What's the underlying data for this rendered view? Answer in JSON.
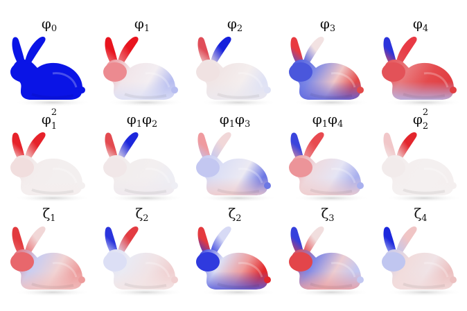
{
  "figure": {
    "rows": [
      [
        {
          "label_base": "φ",
          "label_sub": "0",
          "colormap": {
            "base": "#0a14e6",
            "ear_tip": "#0a14e6",
            "ear2": "#0a14e6",
            "head": "#0a14e6",
            "front": "#0a14e6",
            "back": "#0a14e6",
            "bottom": "#0a14e6"
          }
        },
        {
          "label_base": "φ",
          "label_sub": "1",
          "colormap": {
            "base": "#f3eef2",
            "ear_tip": "#e8141e",
            "ear2": "#e8141e",
            "head": "#ec8a90",
            "front": "#f1e6ea",
            "back": "#b7bdf0",
            "bottom": "#dcdff5"
          }
        },
        {
          "label_base": "φ",
          "label_sub": "2",
          "colormap": {
            "base": "#f4eeee",
            "ear_tip": "#e04d58",
            "ear2": "#1520dc",
            "head": "#f0e2e2",
            "front": "#f1e6e6",
            "back": "#dfe2f5",
            "bottom": "#ebe8ee"
          }
        },
        {
          "label_base": "φ",
          "label_sub": "3",
          "colormap": {
            "base": "#f0c7c7",
            "ear_tip": "#e83a40",
            "ear2": "#f2e2e2",
            "head": "#4a57dc",
            "front": "#7f8ae6",
            "back": "#e34a4a",
            "bottom": "#5964e0"
          }
        },
        {
          "label_base": "φ",
          "label_sub": "4",
          "colormap": {
            "base": "#e44a4d",
            "ear_tip": "#2b33db",
            "ear2": "#e83a45",
            "head": "#e35258",
            "front": "#e9797c",
            "back": "#e13e42",
            "bottom": "#b3baf0"
          }
        }
      ],
      [
        {
          "label_base": "φ",
          "label_sub": "1",
          "label_sup": "2",
          "colormap": {
            "base": "#f3efef",
            "ear_tip": "#e6222a",
            "ear2": "#e6222a",
            "head": "#f1dede",
            "front": "#f3eded",
            "back": "#f3efef",
            "bottom": "#f4eeee"
          }
        },
        {
          "label_base": "φ",
          "label_sub": "1",
          "label_base2": "φ",
          "label_sub2": "2",
          "colormap": {
            "base": "#f3eff0",
            "ear_tip": "#e34a50",
            "ear2": "#1c27dc",
            "head": "#f1e7e8",
            "front": "#f2eeee",
            "back": "#eeeef4",
            "bottom": "#efe9ee"
          }
        },
        {
          "label_base": "φ",
          "label_sub": "1",
          "label_base2": "φ",
          "label_sub2": "3",
          "colormap": {
            "base": "#eceaf3",
            "ear_tip": "#ef9a9f",
            "ear2": "#f1d7d8",
            "head": "#c3c7f1",
            "front": "#dcdff5",
            "back": "#6d78e4",
            "bottom": "#f0c9c9"
          }
        },
        {
          "label_base": "φ",
          "label_sub": "1",
          "label_base2": "φ",
          "label_sub2": "4",
          "colormap": {
            "base": "#e6e5f4",
            "ear_tip": "#3a44dc",
            "ear2": "#e84a50",
            "head": "#ec9499",
            "front": "#eedbe0",
            "back": "#a9b0ee",
            "bottom": "#f0cccc"
          }
        },
        {
          "label_base": "φ",
          "label_sub": "2",
          "label_sup": "2",
          "colormap": {
            "base": "#f4f0f0",
            "ear_tip": "#f1c7c9",
            "ear2": "#e3262d",
            "head": "#f2ebeb",
            "front": "#f4efef",
            "back": "#f4efef",
            "bottom": "#f4f0f0"
          }
        }
      ],
      [
        {
          "label_base": "ζ",
          "label_sub": "1",
          "colormap": {
            "base": "#f1d3d3",
            "ear_tip": "#e23a3e",
            "ear2": "#f1d7d7",
            "head": "#e8676c",
            "front": "#c9cdf1",
            "back": "#ed9b9b",
            "bottom": "#f0c1c1"
          }
        },
        {
          "label_base": "ζ",
          "label_sub": "2",
          "colormap": {
            "base": "#f1e3e5",
            "ear_tip": "#2a34dc",
            "ear2": "#e33c42",
            "head": "#dcdff5",
            "front": "#eaeaf3",
            "back": "#f0cfd0",
            "bottom": "#f3e6e6"
          }
        },
        {
          "label_base": "ζ",
          "label_sub": "2",
          "colormap": {
            "base": "#ee9c9c",
            "ear_tip": "#e43a3e",
            "ear2": "#d7daf5",
            "head": "#2f3ade",
            "front": "#dcdff5",
            "back": "#e2282b",
            "bottom": "#5560e0"
          }
        },
        {
          "label_base": "ζ",
          "label_sub": "3",
          "colormap": {
            "base": "#eccdd2",
            "ear_tip": "#3540dc",
            "ear2": "#f1dede",
            "head": "#e3454a",
            "front": "#7f88e6",
            "back": "#c3c8f1",
            "bottom": "#ea9ca0"
          }
        },
        {
          "label_base": "ζ",
          "label_sub": "4",
          "colormap": {
            "base": "#f0e3e6",
            "ear_tip": "#1c28dc",
            "ear2": "#f0c5c5",
            "head": "#c0c6f0",
            "front": "#f1dcdc",
            "back": "#ecc0c0",
            "bottom": "#f2dcdc"
          }
        }
      ]
    ]
  }
}
